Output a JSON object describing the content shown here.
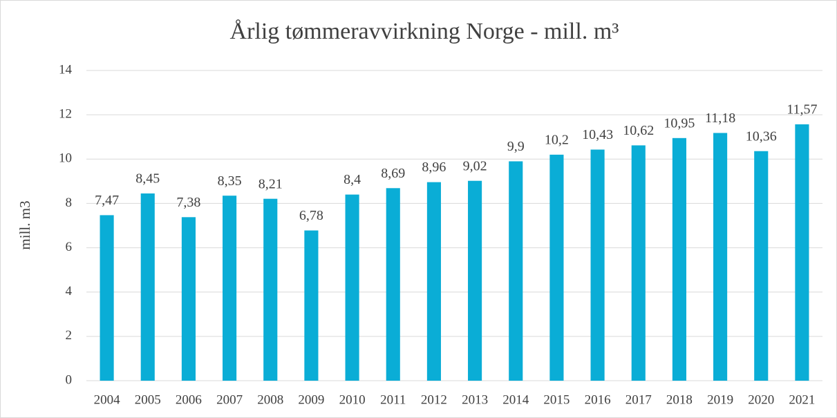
{
  "chart_data": {
    "type": "bar",
    "title": "Årlig tømmeravvirkning Norge - mill. m³",
    "y_label": "mill. m3",
    "categories": [
      "2004",
      "2005",
      "2006",
      "2007",
      "2008",
      "2009",
      "2010",
      "2011",
      "2012",
      "2013",
      "2014",
      "2015",
      "2016",
      "2017",
      "2018",
      "2019",
      "2020",
      "2021"
    ],
    "values": [
      7.47,
      8.45,
      7.38,
      8.35,
      8.21,
      6.78,
      8.4,
      8.69,
      8.96,
      9.02,
      9.9,
      10.2,
      10.43,
      10.62,
      10.95,
      11.18,
      10.36,
      11.57
    ],
    "value_labels": [
      "7,47",
      "8,45",
      "7,38",
      "8,35",
      "8,21",
      "6,78",
      "8,4",
      "8,69",
      "8,96",
      "9,02",
      "9,9",
      "10,2",
      "10,43",
      "10,62",
      "10,95",
      "11,18",
      "10,36",
      "11,57"
    ],
    "color": "#0aadd6",
    "ylim": [
      0,
      14
    ],
    "yticks": [
      0,
      2,
      4,
      6,
      8,
      10,
      12,
      14
    ],
    "grid": true
  }
}
